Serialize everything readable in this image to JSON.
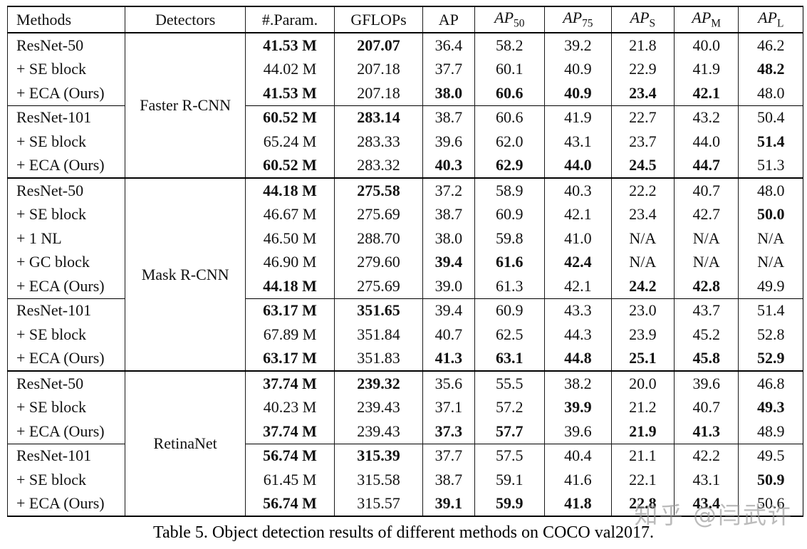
{
  "page": {
    "caption": "Table 5. Object detection results of different methods on COCO val2017.",
    "watermark": "知乎 @闫武许"
  },
  "table": {
    "headers": [
      {
        "label": "Methods",
        "align": "left",
        "italic": false,
        "sub": ""
      },
      {
        "label": "Detectors",
        "italic": false,
        "sub": ""
      },
      {
        "label": "#.Param.",
        "italic": false,
        "sub": ""
      },
      {
        "label": "GFLOPs",
        "italic": false,
        "sub": ""
      },
      {
        "label": "AP",
        "italic": false,
        "sub": ""
      },
      {
        "label": "AP",
        "italic": true,
        "sub": "50"
      },
      {
        "label": "AP",
        "italic": true,
        "sub": "75"
      },
      {
        "label": "AP",
        "italic": true,
        "sub": "S"
      },
      {
        "label": "AP",
        "italic": true,
        "sub": "M"
      },
      {
        "label": "AP",
        "italic": true,
        "sub": "L"
      }
    ],
    "sections": [
      {
        "detector": "Faster R-CNN",
        "groups": [
          {
            "rows": [
              {
                "method": "ResNet-50",
                "cells": [
                  [
                    "41.53 M",
                    1
                  ],
                  [
                    "207.07",
                    1
                  ],
                  [
                    "36.4",
                    0
                  ],
                  [
                    "58.2",
                    0
                  ],
                  [
                    "39.2",
                    0
                  ],
                  [
                    "21.8",
                    0
                  ],
                  [
                    "40.0",
                    0
                  ],
                  [
                    "46.2",
                    0
                  ]
                ]
              },
              {
                "method": "+ SE block",
                "cells": [
                  [
                    "44.02 M",
                    0
                  ],
                  [
                    "207.18",
                    0
                  ],
                  [
                    "37.7",
                    0
                  ],
                  [
                    "60.1",
                    0
                  ],
                  [
                    "40.9",
                    0
                  ],
                  [
                    "22.9",
                    0
                  ],
                  [
                    "41.9",
                    0
                  ],
                  [
                    "48.2",
                    1
                  ]
                ]
              },
              {
                "method": "+ ECA (Ours)",
                "cells": [
                  [
                    "41.53 M",
                    1
                  ],
                  [
                    "207.18",
                    0
                  ],
                  [
                    "38.0",
                    1
                  ],
                  [
                    "60.6",
                    1
                  ],
                  [
                    "40.9",
                    1
                  ],
                  [
                    "23.4",
                    1
                  ],
                  [
                    "42.1",
                    1
                  ],
                  [
                    "48.0",
                    0
                  ]
                ]
              }
            ]
          },
          {
            "rows": [
              {
                "method": "ResNet-101",
                "cells": [
                  [
                    "60.52 M",
                    1
                  ],
                  [
                    "283.14",
                    1
                  ],
                  [
                    "38.7",
                    0
                  ],
                  [
                    "60.6",
                    0
                  ],
                  [
                    "41.9",
                    0
                  ],
                  [
                    "22.7",
                    0
                  ],
                  [
                    "43.2",
                    0
                  ],
                  [
                    "50.4",
                    0
                  ]
                ]
              },
              {
                "method": "+ SE block",
                "cells": [
                  [
                    "65.24 M",
                    0
                  ],
                  [
                    "283.33",
                    0
                  ],
                  [
                    "39.6",
                    0
                  ],
                  [
                    "62.0",
                    0
                  ],
                  [
                    "43.1",
                    0
                  ],
                  [
                    "23.7",
                    0
                  ],
                  [
                    "44.0",
                    0
                  ],
                  [
                    "51.4",
                    1
                  ]
                ]
              },
              {
                "method": "+ ECA (Ours)",
                "cells": [
                  [
                    "60.52 M",
                    1
                  ],
                  [
                    "283.32",
                    0
                  ],
                  [
                    "40.3",
                    1
                  ],
                  [
                    "62.9",
                    1
                  ],
                  [
                    "44.0",
                    1
                  ],
                  [
                    "24.5",
                    1
                  ],
                  [
                    "44.7",
                    1
                  ],
                  [
                    "51.3",
                    0
                  ]
                ]
              }
            ]
          }
        ]
      },
      {
        "detector": "Mask R-CNN",
        "groups": [
          {
            "rows": [
              {
                "method": "ResNet-50",
                "cells": [
                  [
                    "44.18 M",
                    1
                  ],
                  [
                    "275.58",
                    1
                  ],
                  [
                    "37.2",
                    0
                  ],
                  [
                    "58.9",
                    0
                  ],
                  [
                    "40.3",
                    0
                  ],
                  [
                    "22.2",
                    0
                  ],
                  [
                    "40.7",
                    0
                  ],
                  [
                    "48.0",
                    0
                  ]
                ]
              },
              {
                "method": "+ SE block",
                "cells": [
                  [
                    "46.67 M",
                    0
                  ],
                  [
                    "275.69",
                    0
                  ],
                  [
                    "38.7",
                    0
                  ],
                  [
                    "60.9",
                    0
                  ],
                  [
                    "42.1",
                    0
                  ],
                  [
                    "23.4",
                    0
                  ],
                  [
                    "42.7",
                    0
                  ],
                  [
                    "50.0",
                    1
                  ]
                ]
              },
              {
                "method": "+ 1 NL",
                "cells": [
                  [
                    "46.50 M",
                    0
                  ],
                  [
                    "288.70",
                    0
                  ],
                  [
                    "38.0",
                    0
                  ],
                  [
                    "59.8",
                    0
                  ],
                  [
                    "41.0",
                    0
                  ],
                  [
                    "N/A",
                    0
                  ],
                  [
                    "N/A",
                    0
                  ],
                  [
                    "N/A",
                    0
                  ]
                ]
              },
              {
                "method": "+ GC block",
                "cells": [
                  [
                    "46.90 M",
                    0
                  ],
                  [
                    "279.60",
                    0
                  ],
                  [
                    "39.4",
                    1
                  ],
                  [
                    "61.6",
                    1
                  ],
                  [
                    "42.4",
                    1
                  ],
                  [
                    "N/A",
                    0
                  ],
                  [
                    "N/A",
                    0
                  ],
                  [
                    "N/A",
                    0
                  ]
                ]
              },
              {
                "method": "+ ECA (Ours)",
                "cells": [
                  [
                    "44.18 M",
                    1
                  ],
                  [
                    "275.69",
                    0
                  ],
                  [
                    "39.0",
                    0
                  ],
                  [
                    "61.3",
                    0
                  ],
                  [
                    "42.1",
                    0
                  ],
                  [
                    "24.2",
                    1
                  ],
                  [
                    "42.8",
                    1
                  ],
                  [
                    "49.9",
                    0
                  ]
                ]
              }
            ]
          },
          {
            "rows": [
              {
                "method": "ResNet-101",
                "cells": [
                  [
                    "63.17 M",
                    1
                  ],
                  [
                    "351.65",
                    1
                  ],
                  [
                    "39.4",
                    0
                  ],
                  [
                    "60.9",
                    0
                  ],
                  [
                    "43.3",
                    0
                  ],
                  [
                    "23.0",
                    0
                  ],
                  [
                    "43.7",
                    0
                  ],
                  [
                    "51.4",
                    0
                  ]
                ]
              },
              {
                "method": "+ SE block",
                "cells": [
                  [
                    "67.89 M",
                    0
                  ],
                  [
                    "351.84",
                    0
                  ],
                  [
                    "40.7",
                    0
                  ],
                  [
                    "62.5",
                    0
                  ],
                  [
                    "44.3",
                    0
                  ],
                  [
                    "23.9",
                    0
                  ],
                  [
                    "45.2",
                    0
                  ],
                  [
                    "52.8",
                    0
                  ]
                ]
              },
              {
                "method": "+ ECA (Ours)",
                "cells": [
                  [
                    "63.17 M",
                    1
                  ],
                  [
                    "351.83",
                    0
                  ],
                  [
                    "41.3",
                    1
                  ],
                  [
                    "63.1",
                    1
                  ],
                  [
                    "44.8",
                    1
                  ],
                  [
                    "25.1",
                    1
                  ],
                  [
                    "45.8",
                    1
                  ],
                  [
                    "52.9",
                    1
                  ]
                ]
              }
            ]
          }
        ]
      },
      {
        "detector": "RetinaNet",
        "groups": [
          {
            "rows": [
              {
                "method": "ResNet-50",
                "cells": [
                  [
                    "37.74 M",
                    1
                  ],
                  [
                    "239.32",
                    1
                  ],
                  [
                    "35.6",
                    0
                  ],
                  [
                    "55.5",
                    0
                  ],
                  [
                    "38.2",
                    0
                  ],
                  [
                    "20.0",
                    0
                  ],
                  [
                    "39.6",
                    0
                  ],
                  [
                    "46.8",
                    0
                  ]
                ]
              },
              {
                "method": "+ SE block",
                "cells": [
                  [
                    "40.23 M",
                    0
                  ],
                  [
                    "239.43",
                    0
                  ],
                  [
                    "37.1",
                    0
                  ],
                  [
                    "57.2",
                    0
                  ],
                  [
                    "39.9",
                    1
                  ],
                  [
                    "21.2",
                    0
                  ],
                  [
                    "40.7",
                    0
                  ],
                  [
                    "49.3",
                    1
                  ]
                ]
              },
              {
                "method": "+ ECA (Ours)",
                "cells": [
                  [
                    "37.74 M",
                    1
                  ],
                  [
                    "239.43",
                    0
                  ],
                  [
                    "37.3",
                    1
                  ],
                  [
                    "57.7",
                    1
                  ],
                  [
                    "39.6",
                    0
                  ],
                  [
                    "21.9",
                    1
                  ],
                  [
                    "41.3",
                    1
                  ],
                  [
                    "48.9",
                    0
                  ]
                ]
              }
            ]
          },
          {
            "rows": [
              {
                "method": "ResNet-101",
                "cells": [
                  [
                    "56.74 M",
                    1
                  ],
                  [
                    "315.39",
                    1
                  ],
                  [
                    "37.7",
                    0
                  ],
                  [
                    "57.5",
                    0
                  ],
                  [
                    "40.4",
                    0
                  ],
                  [
                    "21.1",
                    0
                  ],
                  [
                    "42.2",
                    0
                  ],
                  [
                    "49.5",
                    0
                  ]
                ]
              },
              {
                "method": "+ SE block",
                "cells": [
                  [
                    "61.45 M",
                    0
                  ],
                  [
                    "315.58",
                    0
                  ],
                  [
                    "38.7",
                    0
                  ],
                  [
                    "59.1",
                    0
                  ],
                  [
                    "41.6",
                    0
                  ],
                  [
                    "22.1",
                    0
                  ],
                  [
                    "43.1",
                    0
                  ],
                  [
                    "50.9",
                    1
                  ]
                ]
              },
              {
                "method": "+ ECA (Ours)",
                "cells": [
                  [
                    "56.74 M",
                    1
                  ],
                  [
                    "315.57",
                    0
                  ],
                  [
                    "39.1",
                    1
                  ],
                  [
                    "59.9",
                    1
                  ],
                  [
                    "41.8",
                    1
                  ],
                  [
                    "22.8",
                    1
                  ],
                  [
                    "43.4",
                    1
                  ],
                  [
                    "50.6",
                    0
                  ]
                ]
              }
            ]
          }
        ]
      }
    ],
    "column_keys": [
      "methods",
      "detectors",
      "params",
      "gflops",
      "ap",
      "ap50",
      "ap75",
      "aps",
      "apm",
      "apl"
    ]
  }
}
